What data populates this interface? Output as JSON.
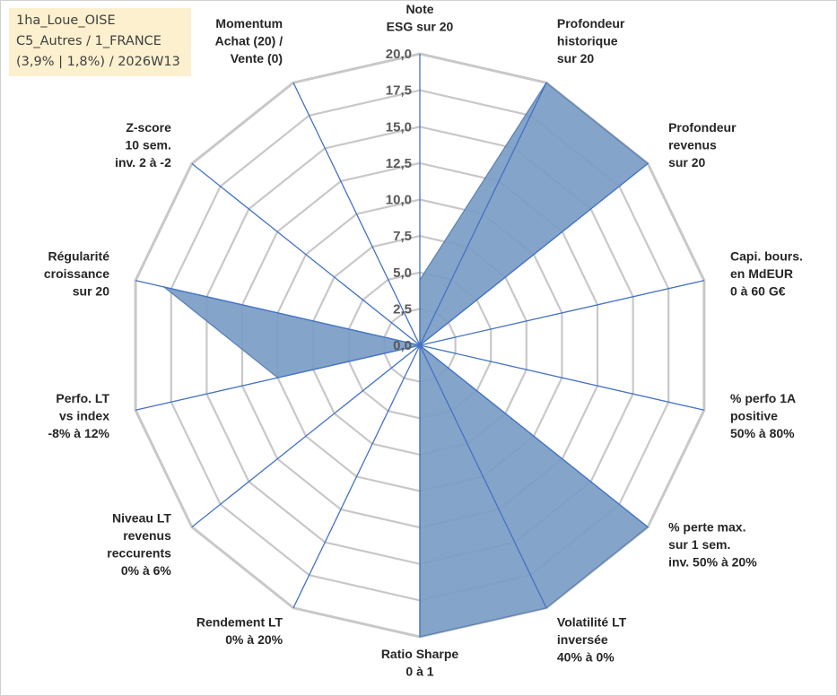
{
  "info_box": {
    "line1": "1ha_Loue_OISE",
    "line2": "C5_Autres / 1_FRANCE",
    "line3": "(3,9% | 1,8%) / 2026W13"
  },
  "colors": {
    "fill": "#7a9cc6",
    "stroke": "#5b80b2",
    "grid": "#c8c8c8",
    "axis": "#4472c4",
    "info_box_bg": "#fdf0cf"
  },
  "chart_data": {
    "type": "radar",
    "rmin": 0,
    "rmax": 20,
    "tick_step": 2.5,
    "tick_labels": [
      "0,0",
      "2,5",
      "5,0",
      "7,5",
      "10,0",
      "12,5",
      "15,0",
      "17,5",
      "20,0"
    ],
    "grid": true,
    "categories": [
      [
        "Note",
        "ESG sur 20"
      ],
      [
        "Profondeur",
        "historique",
        "sur 20"
      ],
      [
        "Profondeur",
        "revenus",
        "sur 20"
      ],
      [
        "Capi. bours.",
        "en MdEUR",
        "0 à 60 G€"
      ],
      [
        "% perfo 1A",
        "positive",
        "50% à 80%"
      ],
      [
        "% perte max.",
        "sur 1 sem.",
        "inv. 50% à 20%"
      ],
      [
        "Volatilité LT",
        "inversée",
        "40% à 0%"
      ],
      [
        "Ratio Sharpe",
        "0 à 1"
      ],
      [
        "Rendement LT",
        "0% à 20%"
      ],
      [
        "Niveau LT",
        "revenus",
        "reccurents",
        "0% à 6%"
      ],
      [
        "Perfo. LT",
        "vs index",
        "-8% à 12%"
      ],
      [
        "Régularité",
        "croissance",
        "sur 20"
      ],
      [
        "Z-score",
        "10 sem.",
        "inv. 2 à -2"
      ],
      [
        "Momentum",
        "Achat (20) /",
        "Vente (0)"
      ]
    ],
    "series": [
      {
        "values": [
          4.5,
          20,
          20,
          0,
          0,
          20,
          20,
          20,
          0,
          0,
          10,
          18,
          0,
          0
        ]
      }
    ]
  }
}
